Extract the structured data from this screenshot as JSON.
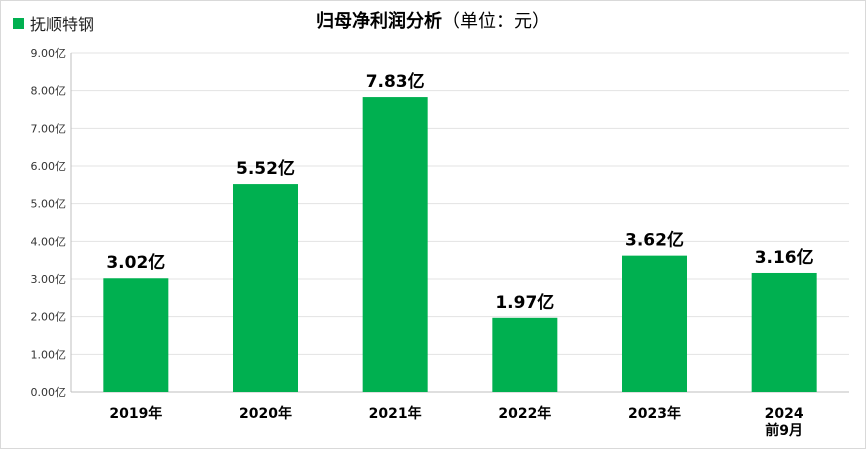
{
  "title_main": "归母净利润分析",
  "title_sub": "（单位：元）",
  "chart_data": {
    "type": "bar",
    "title": "归母净利润分析（单位：元）",
    "categories": [
      "2019年",
      "2020年",
      "2021年",
      "2022年",
      "2023年",
      "2024\n前9月"
    ],
    "series": [
      {
        "name": "抚顺特钢",
        "values": [
          3.02,
          5.52,
          7.83,
          1.97,
          3.62,
          3.16
        ],
        "labels": [
          "3.02亿",
          "5.52亿",
          "7.83亿",
          "1.97亿",
          "3.62亿",
          "3.16亿"
        ],
        "color": "#00b050"
      }
    ],
    "ylim": [
      0,
      9
    ],
    "yticks": [
      "0.00亿",
      "1.00亿",
      "2.00亿",
      "3.00亿",
      "4.00亿",
      "5.00亿",
      "6.00亿",
      "7.00亿",
      "8.00亿",
      "9.00亿"
    ],
    "grid": true,
    "legend_position": "top-left",
    "xlabel": "",
    "ylabel": ""
  }
}
